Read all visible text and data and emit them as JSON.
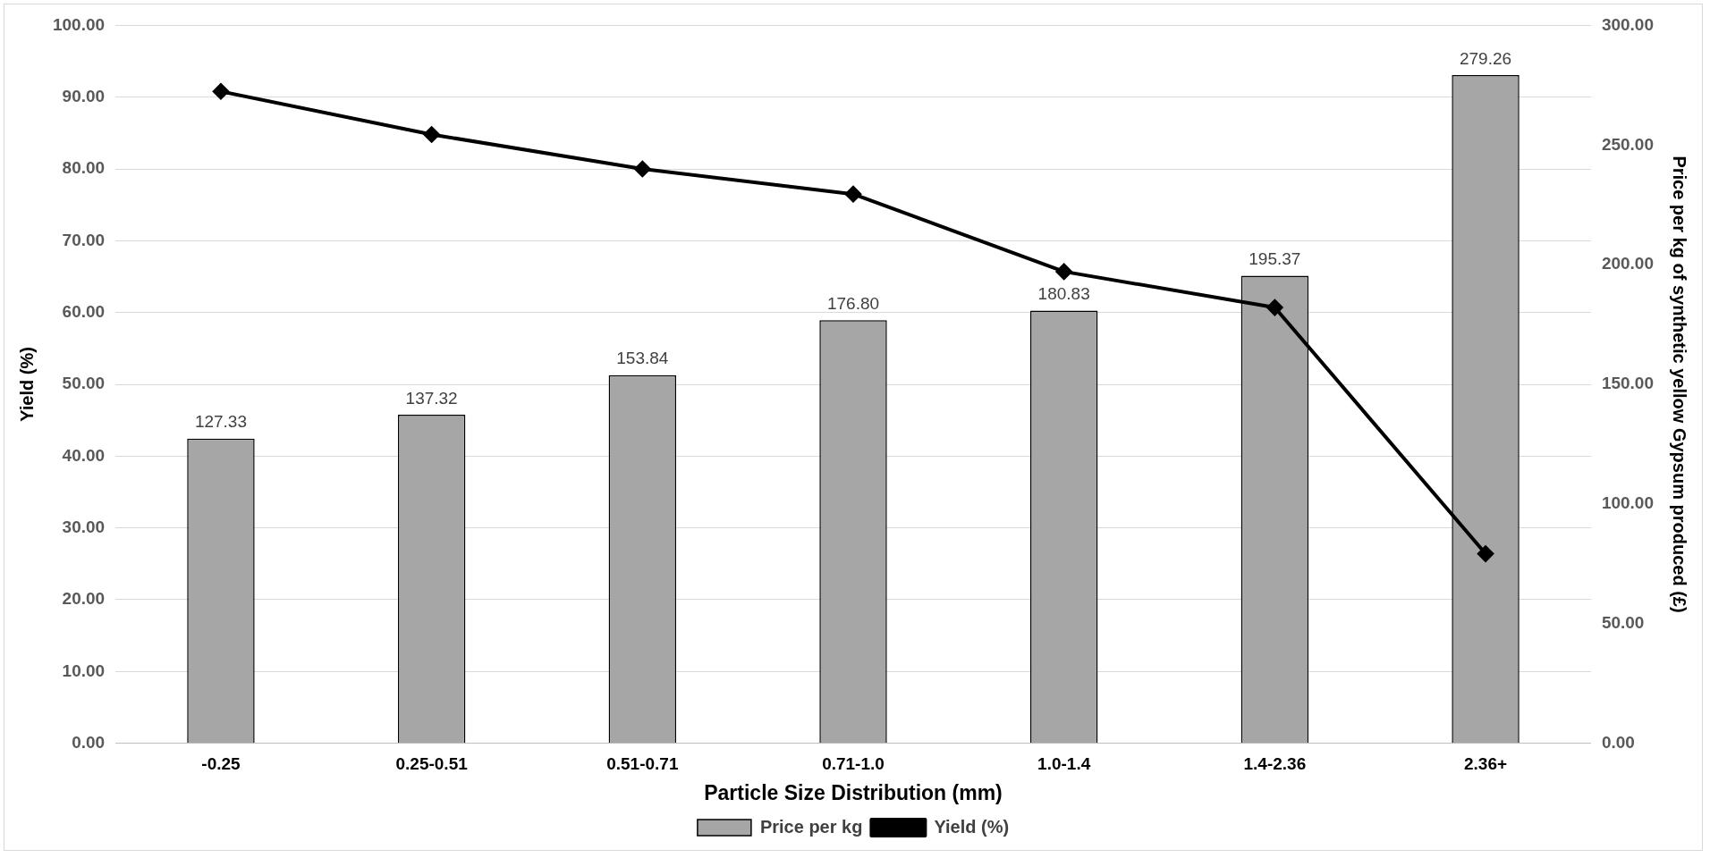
{
  "chart_data": {
    "type": "bar",
    "xlabel": "Particle Size Distribution (mm)",
    "ylabel": "Yield (%)",
    "y2label": "Price per kg of synthetic yellow Gypsum produced (£)",
    "categories": [
      "-0.25",
      "0.25-0.51",
      "0.51-0.71",
      "0.71-1.0",
      "1.0-1.4",
      "1.4-2.36",
      "2.36+"
    ],
    "series": [
      {
        "name": "Price per kg",
        "axis": "y2",
        "color": "#a6a6a6",
        "values": [
          127.33,
          137.32,
          153.84,
          176.8,
          180.83,
          195.37,
          279.26
        ],
        "value_labels": [
          "127.33",
          "137.32",
          "153.84",
          "176.80",
          "180.83",
          "195.37",
          "279.26"
        ]
      },
      {
        "name": "Yield (%)",
        "type": "line",
        "axis": "y",
        "color": "#000000",
        "marker": "diamond",
        "line_style": "solid",
        "values": [
          90.8,
          84.8,
          80.0,
          76.5,
          65.7,
          60.7,
          26.4
        ]
      }
    ],
    "ylim": [
      0,
      100
    ],
    "yticks": [
      {
        "value": 0,
        "label": "0.00"
      },
      {
        "value": 10,
        "label": "10.00"
      },
      {
        "value": 20,
        "label": "20.00"
      },
      {
        "value": 30,
        "label": "30.00"
      },
      {
        "value": 40,
        "label": "40.00"
      },
      {
        "value": 50,
        "label": "50.00"
      },
      {
        "value": 60,
        "label": "60.00"
      },
      {
        "value": 70,
        "label": "70.00"
      },
      {
        "value": 80,
        "label": "80.00"
      },
      {
        "value": 90,
        "label": "90.00"
      },
      {
        "value": 100,
        "label": "100.00"
      }
    ],
    "y2lim": [
      0,
      300
    ],
    "y2ticks": [
      {
        "value": 0,
        "label": "0.00"
      },
      {
        "value": 50,
        "label": "50.00"
      },
      {
        "value": 100,
        "label": "100.00"
      },
      {
        "value": 150,
        "label": "150.00"
      },
      {
        "value": 200,
        "label": "200.00"
      },
      {
        "value": 250,
        "label": "250.00"
      },
      {
        "value": 300,
        "label": "300.00"
      }
    ],
    "grid": "y",
    "legend": "bottom"
  }
}
